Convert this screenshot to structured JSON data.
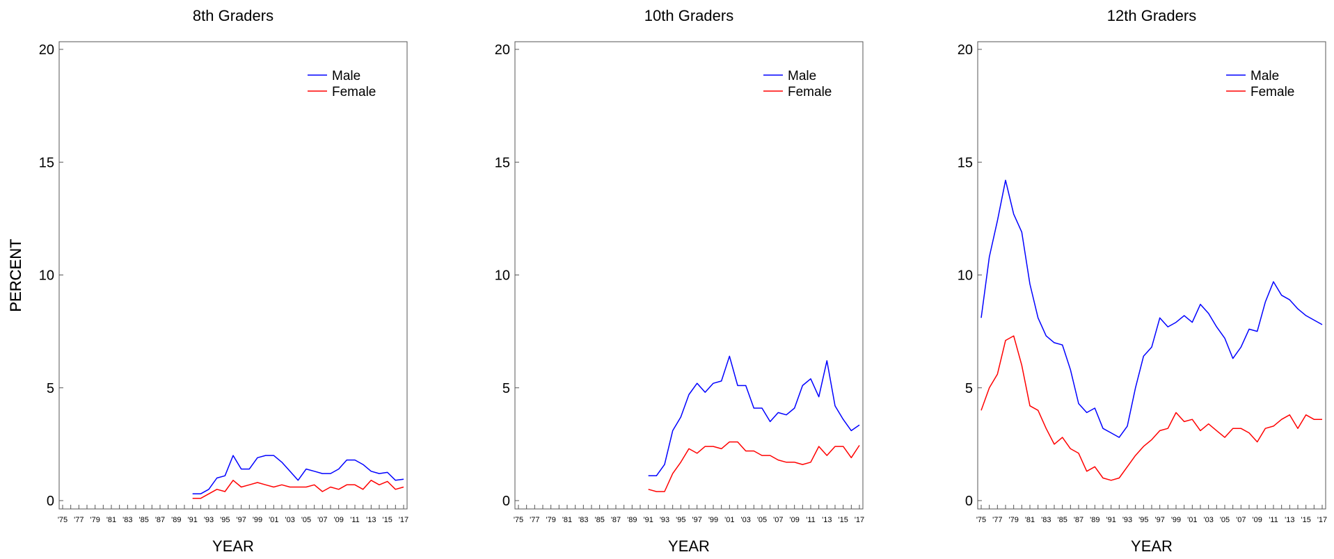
{
  "chart_data": [
    {
      "type": "line",
      "title": "8th Graders",
      "xlabel": "YEAR",
      "ylabel": "PERCENT",
      "ylim": [
        0,
        20
      ],
      "xlim": [
        1975,
        2017
      ],
      "yticks": [
        0,
        5,
        10,
        15,
        20
      ],
      "xtick_labels": [
        "'75",
        "'77",
        "'79",
        "'81",
        "'83",
        "'85",
        "'87",
        "'89",
        "'91",
        "'93",
        "'95",
        "'97",
        "'99",
        "'01",
        "'03",
        "'05",
        "'07",
        "'09",
        "'11",
        "'13",
        "'15",
        "'17"
      ],
      "legend": "top-right",
      "x": [
        1991,
        1992,
        1993,
        1994,
        1995,
        1996,
        1997,
        1998,
        1999,
        2000,
        2001,
        2002,
        2003,
        2004,
        2005,
        2006,
        2007,
        2008,
        2009,
        2010,
        2011,
        2012,
        2013,
        2014,
        2015,
        2016,
        2017
      ],
      "series": [
        {
          "name": "Male",
          "color": "#0000ff",
          "values": [
            0.3,
            0.3,
            0.5,
            1.0,
            1.1,
            2.0,
            1.4,
            1.4,
            1.9,
            2.0,
            2.0,
            1.7,
            1.3,
            0.9,
            1.4,
            1.3,
            1.2,
            1.2,
            1.4,
            1.8,
            1.8,
            1.6,
            1.3,
            1.2,
            1.25,
            0.9,
            0.95
          ]
        },
        {
          "name": "Female",
          "color": "#ff0000",
          "values": [
            0.1,
            0.1,
            0.3,
            0.5,
            0.4,
            0.9,
            0.6,
            0.7,
            0.8,
            0.7,
            0.6,
            0.7,
            0.6,
            0.6,
            0.6,
            0.7,
            0.4,
            0.6,
            0.5,
            0.7,
            0.7,
            0.5,
            0.9,
            0.7,
            0.85,
            0.5,
            0.6
          ]
        }
      ]
    },
    {
      "type": "line",
      "title": "10th Graders",
      "xlabel": "YEAR",
      "ylabel": "PERCENT",
      "ylim": [
        0,
        20
      ],
      "xlim": [
        1975,
        2017
      ],
      "yticks": [
        0,
        5,
        10,
        15,
        20
      ],
      "xtick_labels": [
        "'75",
        "'77",
        "'79",
        "'81",
        "'83",
        "'85",
        "'87",
        "'89",
        "'91",
        "'93",
        "'95",
        "'97",
        "'99",
        "'01",
        "'03",
        "'05",
        "'07",
        "'09",
        "'11",
        "'13",
        "'15",
        "'17"
      ],
      "legend": "top-right",
      "x": [
        1991,
        1992,
        1993,
        1994,
        1995,
        1996,
        1997,
        1998,
        1999,
        2000,
        2001,
        2002,
        2003,
        2004,
        2005,
        2006,
        2007,
        2008,
        2009,
        2010,
        2011,
        2012,
        2013,
        2014,
        2015,
        2016,
        2017
      ],
      "series": [
        {
          "name": "Male",
          "color": "#0000ff",
          "values": [
            1.1,
            1.1,
            1.6,
            3.1,
            3.7,
            4.7,
            5.2,
            4.8,
            5.2,
            5.3,
            6.4,
            5.1,
            5.1,
            4.1,
            4.1,
            3.5,
            3.9,
            3.8,
            4.1,
            5.1,
            5.4,
            4.6,
            6.2,
            4.2,
            3.6,
            3.1,
            3.35
          ]
        },
        {
          "name": "Female",
          "color": "#ff0000",
          "values": [
            0.5,
            0.4,
            0.4,
            1.2,
            1.7,
            2.3,
            2.1,
            2.4,
            2.4,
            2.3,
            2.6,
            2.6,
            2.2,
            2.2,
            2.0,
            2.0,
            1.8,
            1.7,
            1.7,
            1.6,
            1.7,
            2.4,
            2.0,
            2.4,
            2.4,
            1.9,
            2.45
          ]
        }
      ]
    },
    {
      "type": "line",
      "title": "12th Graders",
      "xlabel": "YEAR",
      "ylabel": "PERCENT",
      "ylim": [
        0,
        20
      ],
      "xlim": [
        1975,
        2017
      ],
      "yticks": [
        0,
        5,
        10,
        15,
        20
      ],
      "xtick_labels": [
        "'75",
        "'77",
        "'79",
        "'81",
        "'83",
        "'85",
        "'87",
        "'89",
        "'91",
        "'93",
        "'95",
        "'97",
        "'99",
        "'01",
        "'03",
        "'05",
        "'07",
        "'09",
        "'11",
        "'13",
        "'15",
        "'17"
      ],
      "legend": "top-right",
      "x": [
        1975,
        1976,
        1977,
        1978,
        1979,
        1980,
        1981,
        1982,
        1983,
        1984,
        1985,
        1986,
        1987,
        1988,
        1989,
        1990,
        1991,
        1992,
        1993,
        1994,
        1995,
        1996,
        1997,
        1998,
        1999,
        2000,
        2001,
        2002,
        2003,
        2004,
        2005,
        2006,
        2007,
        2008,
        2009,
        2010,
        2011,
        2012,
        2013,
        2014,
        2015,
        2016,
        2017
      ],
      "series": [
        {
          "name": "Male",
          "color": "#0000ff",
          "values": [
            8.1,
            10.8,
            12.4,
            14.2,
            12.7,
            11.9,
            9.6,
            8.1,
            7.3,
            7.0,
            6.9,
            5.8,
            4.3,
            3.9,
            4.1,
            3.2,
            3.0,
            2.8,
            3.3,
            5.0,
            6.4,
            6.8,
            8.1,
            7.7,
            7.9,
            8.2,
            7.9,
            8.7,
            8.3,
            7.7,
            7.2,
            6.3,
            6.8,
            7.6,
            7.5,
            8.8,
            9.7,
            9.1,
            8.9,
            8.5,
            8.2,
            8.0,
            7.8
          ]
        },
        {
          "name": "Female",
          "color": "#ff0000",
          "values": [
            4.0,
            5.0,
            5.6,
            7.1,
            7.3,
            6.0,
            4.2,
            4.0,
            3.2,
            2.5,
            2.8,
            2.3,
            2.1,
            1.3,
            1.5,
            1.0,
            0.9,
            1.0,
            1.5,
            2.0,
            2.4,
            2.7,
            3.1,
            3.2,
            3.9,
            3.5,
            3.6,
            3.1,
            3.4,
            3.1,
            2.8,
            3.2,
            3.2,
            3.0,
            2.6,
            3.2,
            3.3,
            3.6,
            3.8,
            3.2,
            3.8,
            3.6,
            3.6
          ]
        }
      ]
    }
  ]
}
